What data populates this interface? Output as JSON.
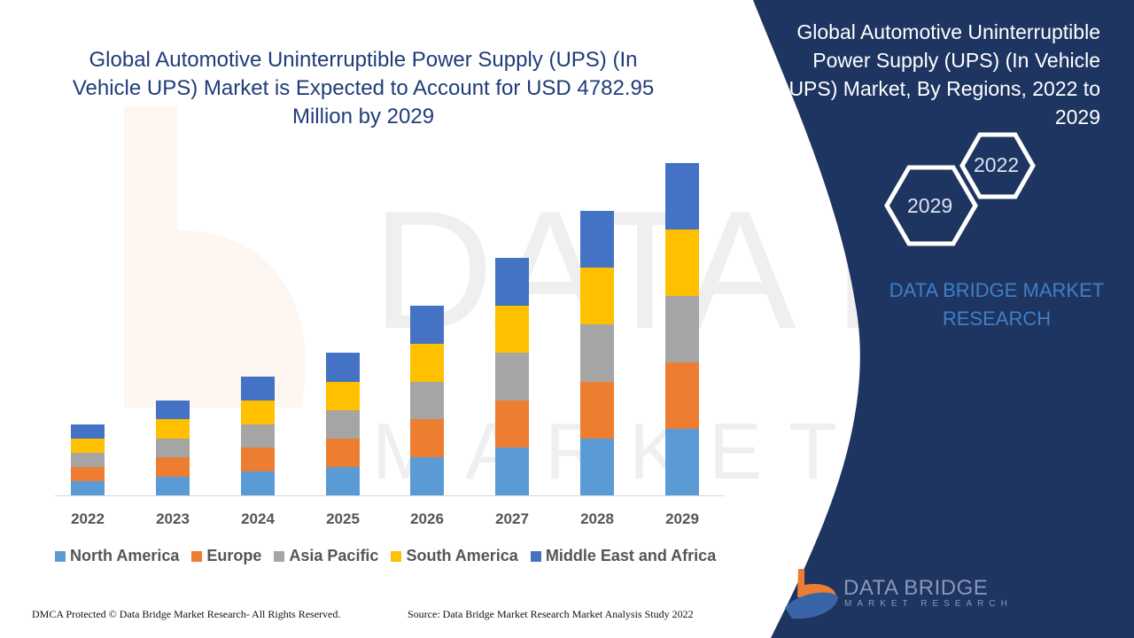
{
  "title": "Global Automotive Uninterruptible Power Supply (UPS) (In Vehicle UPS) Market is Expected to Account for USD 4782.95 Million by 2029",
  "side_panel": {
    "title": "Global Automotive Uninterruptible Power Supply (UPS) (In Vehicle UPS) Market, By Regions, 2022 to 2029",
    "hex_labels": [
      "2022",
      "2029"
    ],
    "brand": "DATA BRIDGE MARKET RESEARCH",
    "logo_title": "DATA BRIDGE",
    "logo_subtitle": "MARKET RESEARCH",
    "background_color": "#1e3461"
  },
  "footer": {
    "copyright": "DMCA Protected © Data Bridge Market Research- All Rights Reserved.",
    "source": "Source: Data Bridge Market Research Market Analysis Study 2022"
  },
  "chart_data": {
    "type": "bar",
    "stacked": true,
    "title": "",
    "xlabel": "",
    "ylabel": "",
    "grid": false,
    "legend_position": "bottom",
    "ylim": [
      0,
      400
    ],
    "categories": [
      "2022",
      "2023",
      "2024",
      "2025",
      "2026",
      "2027",
      "2028",
      "2029"
    ],
    "series": [
      {
        "name": "North America",
        "color": "#5b9bd5",
        "values": [
          16,
          21,
          27,
          32,
          43,
          54,
          64,
          75
        ]
      },
      {
        "name": "Europe",
        "color": "#ed7d31",
        "values": [
          16,
          22,
          27,
          32,
          43,
          53,
          64,
          75
        ]
      },
      {
        "name": "Asia Pacific",
        "color": "#a5a5a5",
        "values": [
          16,
          21,
          26,
          32,
          42,
          54,
          65,
          75
        ]
      },
      {
        "name": "South America",
        "color": "#ffc000",
        "values": [
          16,
          22,
          27,
          32,
          43,
          53,
          64,
          75
        ]
      },
      {
        "name": "Middle East and Africa",
        "color": "#4472c4",
        "values": [
          16,
          21,
          27,
          33,
          43,
          54,
          64,
          75
        ]
      }
    ]
  }
}
